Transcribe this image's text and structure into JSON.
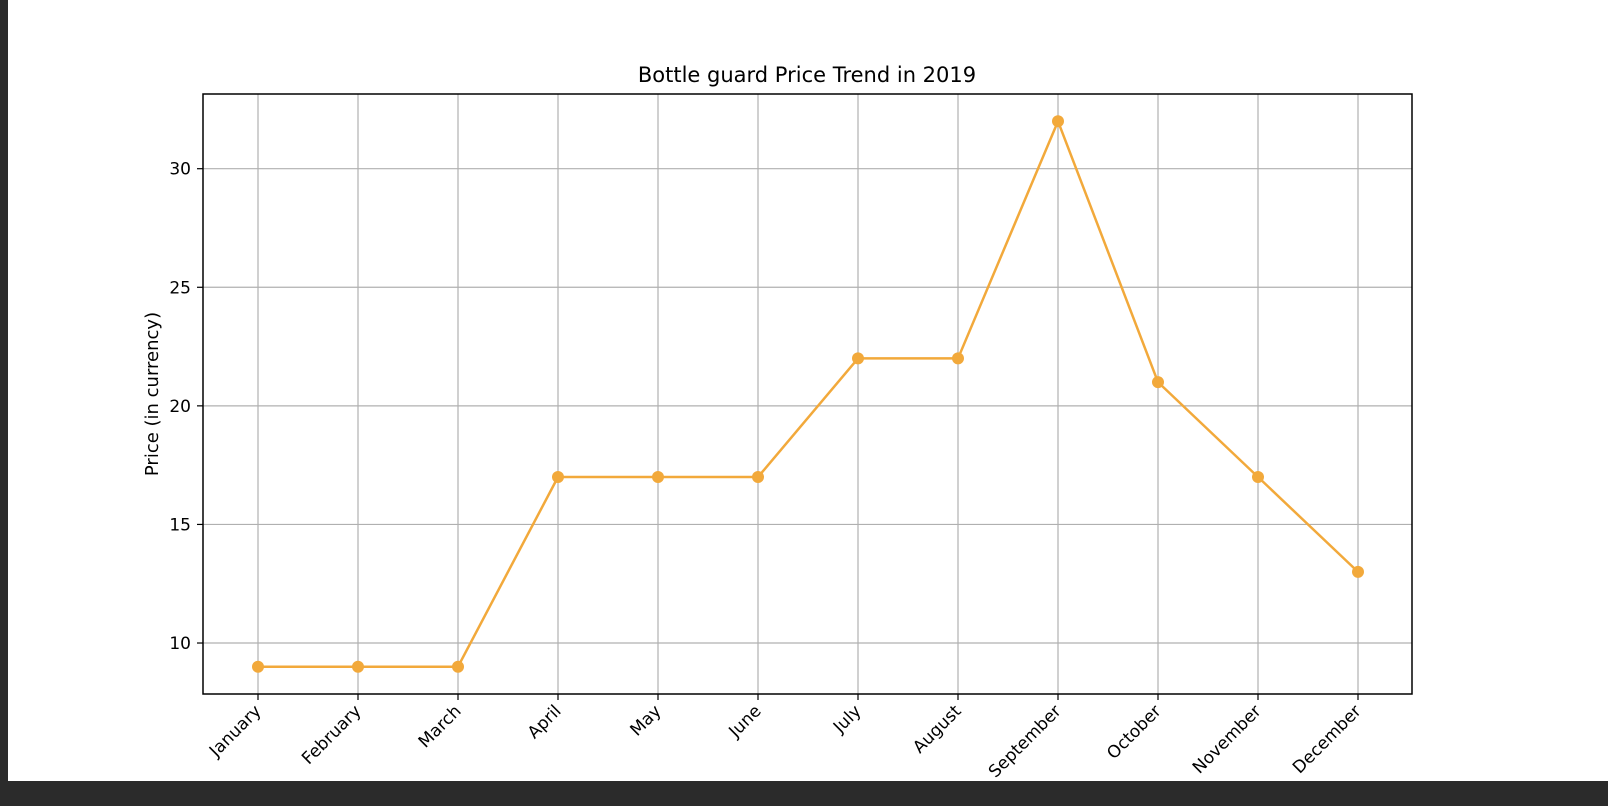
{
  "chart_data": {
    "type": "line",
    "title": "Bottle guard Price Trend in 2019",
    "xlabel": "",
    "ylabel": "Price (in currency)",
    "categories": [
      "January",
      "February",
      "March",
      "April",
      "May",
      "June",
      "July",
      "August",
      "September",
      "October",
      "November",
      "December"
    ],
    "series": [
      {
        "values": [
          9,
          9,
          9,
          17,
          17,
          17,
          22,
          22,
          32,
          21,
          17,
          13
        ],
        "color": "#f2a93b",
        "marker": "circle"
      }
    ],
    "ylim": [
      7.85,
      33.15
    ],
    "yticks": [
      10,
      15,
      20,
      25,
      30
    ],
    "grid": true,
    "legend": "none"
  }
}
